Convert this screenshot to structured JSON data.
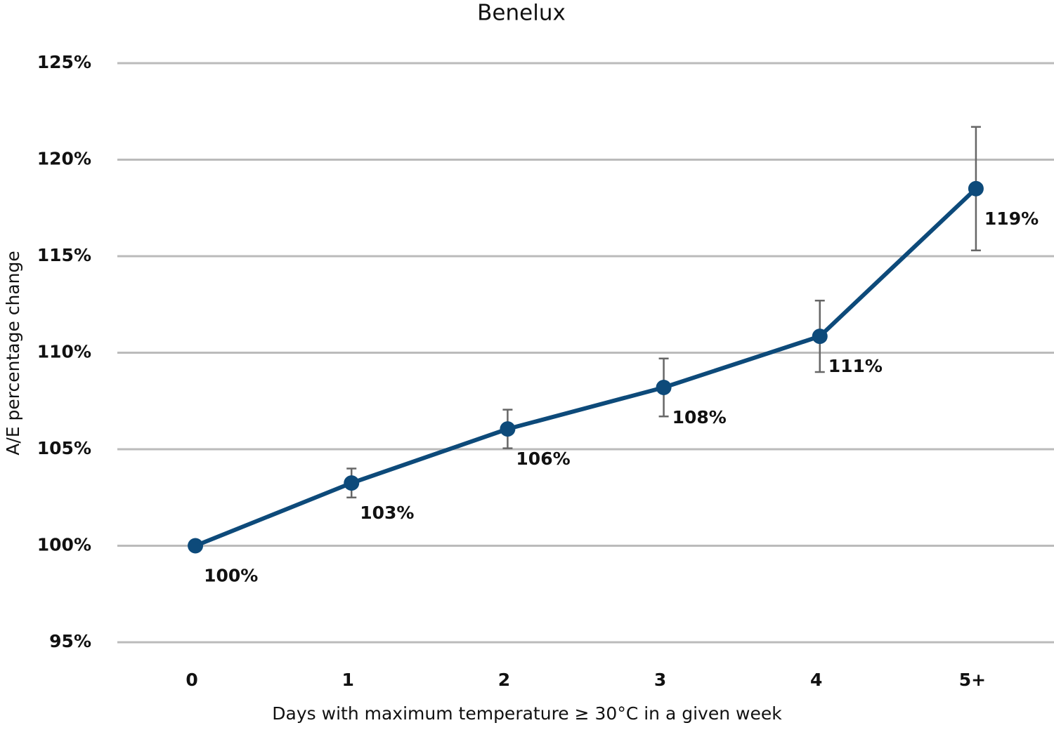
{
  "chart_data": {
    "type": "line",
    "title": "Benelux",
    "x_label": "Days with maximum temperature ≥ 30°C in a given week",
    "y_label": "A/E percentage change",
    "categories": [
      "0",
      "1",
      "2",
      "3",
      "4",
      "5+"
    ],
    "series": [
      {
        "name": "Benelux",
        "color": "#0d4a7a",
        "values": [
          100,
          103.25,
          106.05,
          108.2,
          110.85,
          118.5
        ],
        "errors": [
          null,
          0.75,
          1.0,
          1.5,
          1.85,
          3.2
        ],
        "value_labels": [
          "100%",
          "103%",
          "106%",
          "108%",
          "111%",
          "119%"
        ]
      }
    ],
    "error_color": "#666666",
    "ylim": [
      95,
      125
    ],
    "yticks": [
      {
        "value": 95,
        "label": "95%"
      },
      {
        "value": 100,
        "label": "100%"
      },
      {
        "value": 105,
        "label": "105%"
      },
      {
        "value": 110,
        "label": "110%"
      },
      {
        "value": 115,
        "label": "115%"
      },
      {
        "value": 120,
        "label": "120%"
      },
      {
        "value": 125,
        "label": "125%"
      }
    ],
    "grid": true
  }
}
